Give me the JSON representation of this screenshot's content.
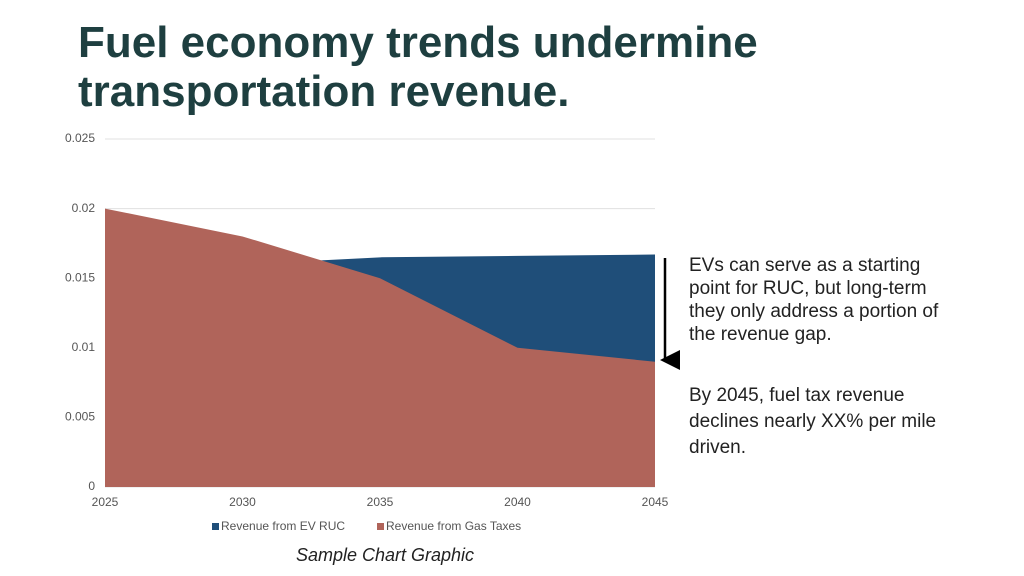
{
  "title": "Fuel economy trends undermine transportation revenue.",
  "chart_data": {
    "type": "area",
    "x": [
      2025,
      2030,
      2035,
      2040,
      2045
    ],
    "xlim": [
      2025,
      2045
    ],
    "xticks": [
      2025,
      2030,
      2035,
      2040,
      2045
    ],
    "ylim": [
      0,
      0.025
    ],
    "yticks": [
      0,
      0.005,
      0.01,
      0.015,
      0.02,
      0.025
    ],
    "grid": true,
    "legend": "bottom",
    "series": [
      {
        "name": "Revenue from EV RUC",
        "color": "#1f4e79",
        "values": [
          0.015,
          0.016,
          0.0165,
          0.0166,
          0.0167
        ]
      },
      {
        "name": "Revenue from Gas Taxes",
        "color": "#b0645a",
        "values": [
          0.02,
          0.018,
          0.015,
          0.01,
          0.009
        ]
      }
    ]
  },
  "notes": [
    "EVs can serve as a starting point for RUC, but long-term they only address a portion of the revenue gap.",
    "By 2045, fuel tax revenue declines nearly XX% per mile driven."
  ],
  "caption": "Sample Chart Graphic"
}
